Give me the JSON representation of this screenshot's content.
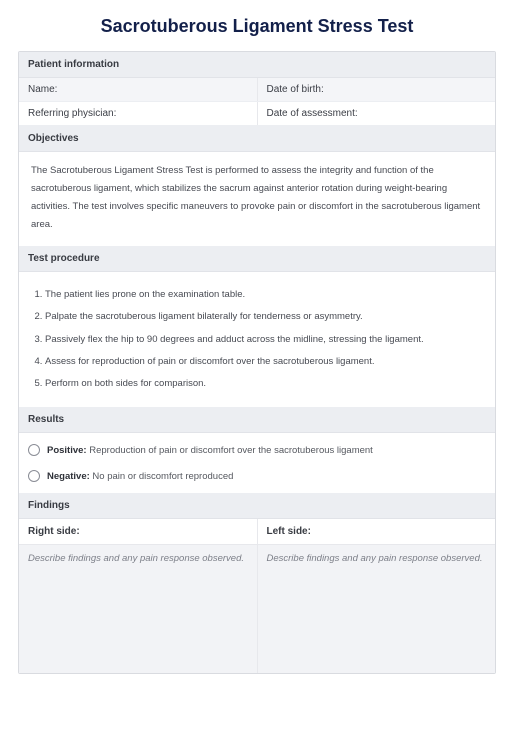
{
  "title": "Sacrotuberous Ligament Stress Test",
  "patient_info": {
    "header": "Patient information",
    "fields": {
      "name": "Name:",
      "dob": "Date of birth:",
      "physician": "Referring physician:",
      "assessment_date": "Date of assessment:"
    }
  },
  "objectives": {
    "header": "Objectives",
    "text": "The Sacrotuberous Ligament Stress Test is performed to assess the integrity and function of the sacrotuberous ligament, which stabilizes the sacrum against anterior rotation during weight-bearing activities. The test involves specific maneuvers to provoke pain or discomfort in the sacrotuberous ligament area."
  },
  "procedure": {
    "header": "Test procedure",
    "steps": [
      "The patient lies prone on the examination table.",
      "Palpate the sacrotuberous ligament bilaterally for tenderness or asymmetry.",
      "Passively flex the hip to 90 degrees and adduct across the midline, stressing the ligament.",
      "Assess for reproduction of pain or discomfort over the sacrotuberous ligament.",
      "Perform on both sides for comparison."
    ]
  },
  "results": {
    "header": "Results",
    "positive_label": "Positive:",
    "positive_text": " Reproduction of pain or discomfort over the sacrotuberous ligament",
    "negative_label": "Negative:",
    "negative_text": " No pain or discomfort reproduced"
  },
  "findings": {
    "header": "Findings",
    "right_label": "Right side:",
    "left_label": "Left side:",
    "placeholder": "Describe findings and any pain response observed."
  },
  "colors": {
    "title": "#13204a",
    "header_bg": "#eceef2",
    "border": "#d9dbe0",
    "text_body": "#474a52",
    "placeholder": "#7c7f88",
    "findings_bg": "#f2f3f6"
  }
}
